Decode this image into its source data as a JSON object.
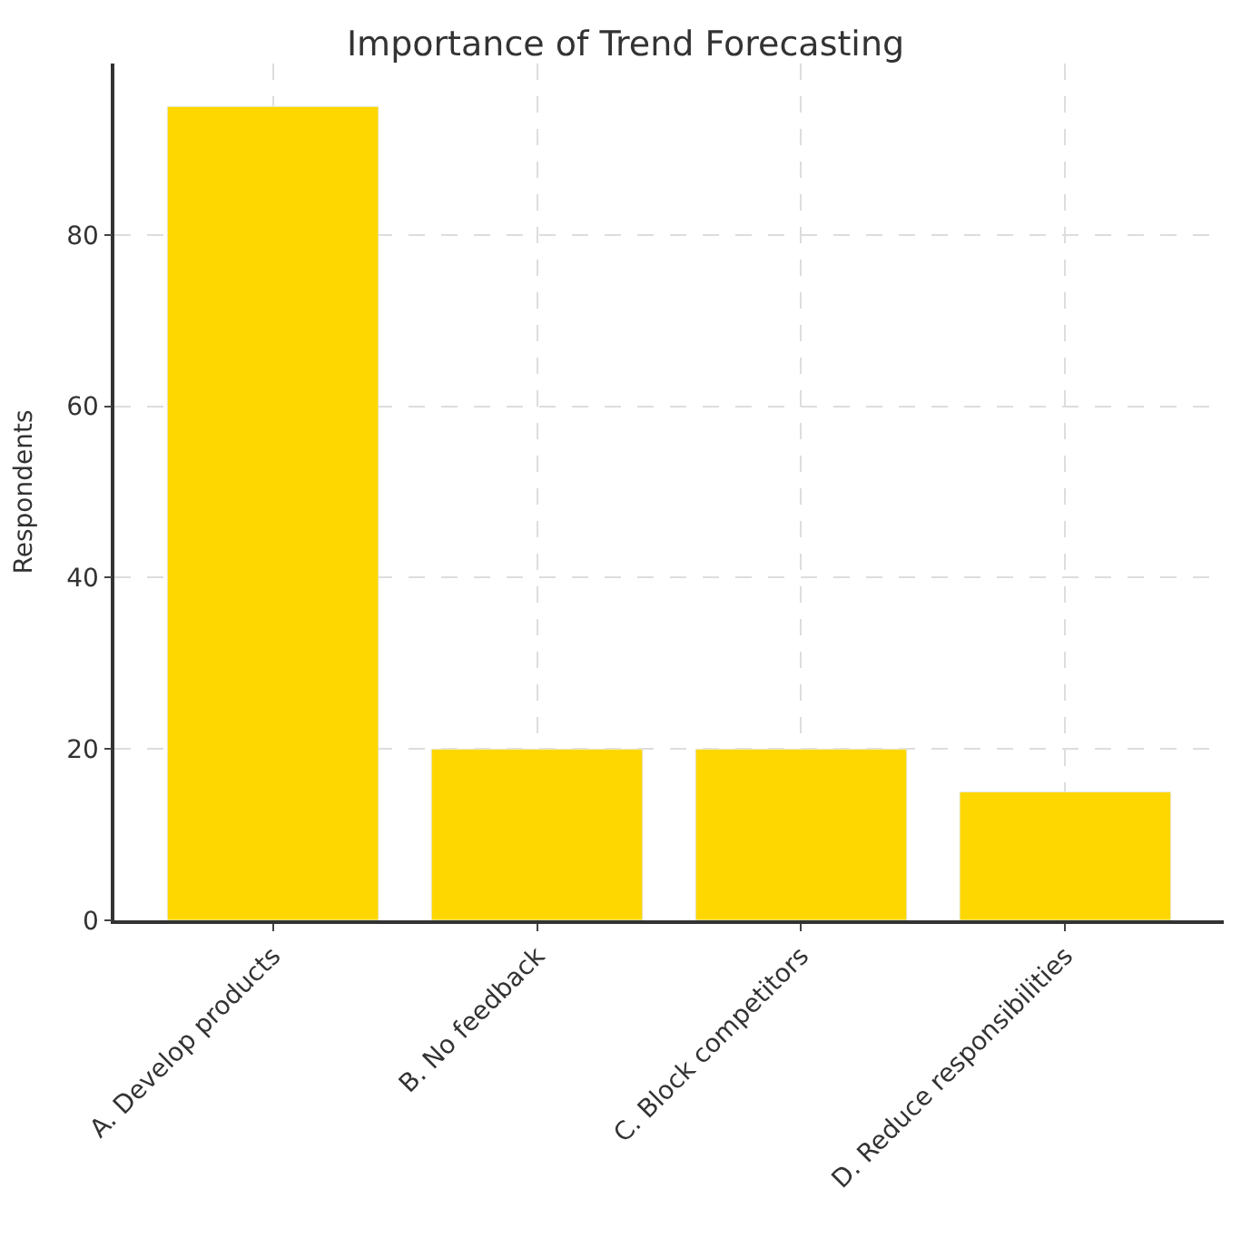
{
  "chart_data": {
    "type": "bar",
    "title": "Importance of Trend Forecasting",
    "ylabel": "Respondents",
    "categories": [
      "A. Develop products",
      "B. No feedback",
      "C. Block competitors",
      "D. Reduce responsibilities"
    ],
    "values": [
      95,
      20,
      20,
      15
    ],
    "color": "#ffd700",
    "ylim": [
      0,
      100
    ],
    "yticks": [
      0,
      20,
      40,
      60,
      80
    ],
    "grid": true
  }
}
